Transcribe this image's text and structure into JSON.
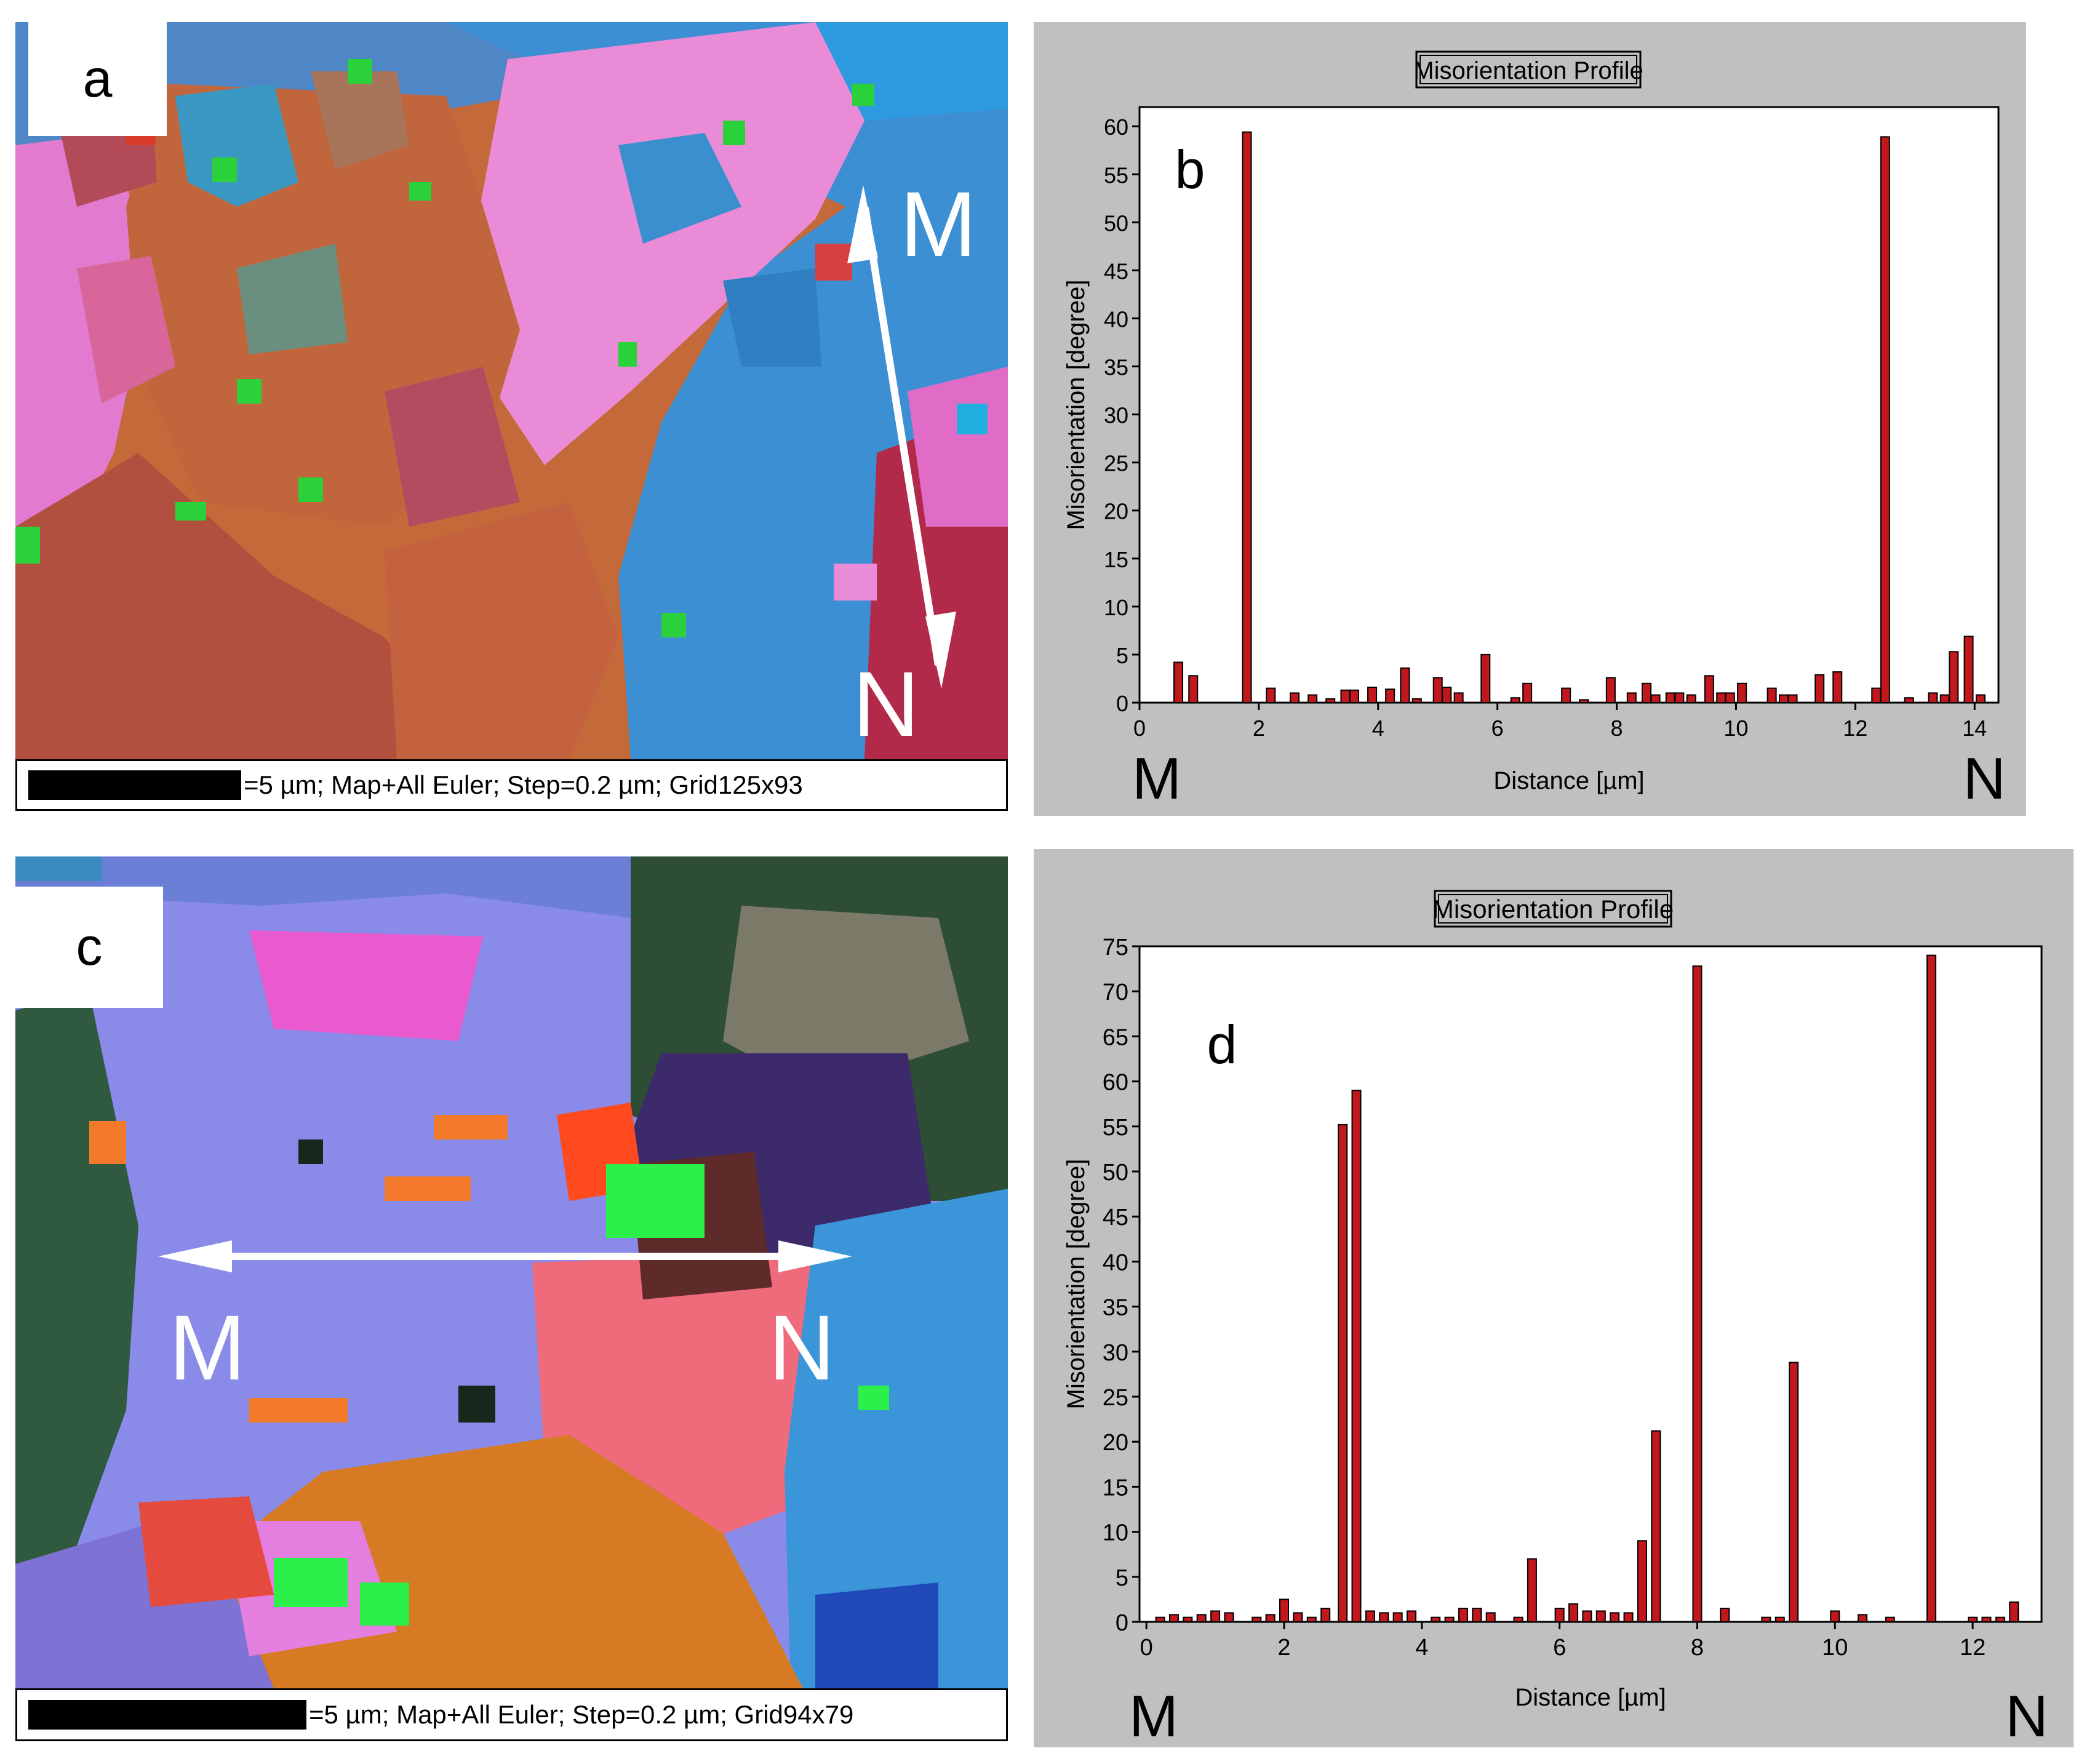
{
  "panels": {
    "a": {
      "letter": "a",
      "scale_text": "=5 µm; Map+All Euler; Step=0.2 µm; Grid125x93",
      "label_start": "M",
      "label_end": "N"
    },
    "c": {
      "letter": "c",
      "scale_text": "=5 µm; Map+All Euler; Step=0.2 µm; Grid94x79",
      "label_start": "M",
      "label_end": "N"
    }
  },
  "chart_data": [
    {
      "panel_letter": "b",
      "type": "bar",
      "title": "Misorientation Profile",
      "xlabel": "Distance [µm]",
      "ylabel": "Misorientation [degree]",
      "xlim": [
        0,
        14.4
      ],
      "ylim": [
        0,
        62
      ],
      "xticks": [
        0,
        2,
        4,
        6,
        8,
        10,
        12,
        14
      ],
      "yticks": [
        0,
        5,
        10,
        15,
        20,
        25,
        30,
        35,
        40,
        45,
        50,
        55,
        60
      ],
      "start_label": "M",
      "end_label": "N",
      "grid": false,
      "bar_color": "#c0181c",
      "x": [
        0.65,
        0.9,
        1.8,
        2.2,
        2.6,
        2.9,
        3.2,
        3.45,
        3.6,
        3.9,
        4.2,
        4.45,
        4.65,
        5.0,
        5.15,
        5.35,
        5.8,
        6.3,
        6.5,
        7.15,
        7.45,
        7.9,
        8.25,
        8.5,
        8.65,
        8.9,
        9.05,
        9.25,
        9.55,
        9.75,
        9.9,
        10.1,
        10.6,
        10.8,
        10.95,
        11.4,
        11.7,
        12.35,
        12.5,
        12.9,
        13.3,
        13.5,
        13.65,
        13.9,
        14.1
      ],
      "values": [
        4.2,
        2.8,
        59.4,
        1.5,
        1.0,
        0.8,
        0.4,
        1.3,
        1.3,
        1.6,
        1.4,
        3.6,
        0.4,
        2.6,
        1.6,
        1.0,
        5.0,
        0.5,
        2.0,
        1.5,
        0.3,
        2.6,
        1.0,
        2.0,
        0.8,
        1.0,
        1.0,
        0.8,
        2.8,
        1.0,
        1.0,
        2.0,
        1.5,
        0.8,
        0.8,
        2.9,
        3.2,
        1.5,
        58.9,
        0.5,
        1.0,
        0.8,
        5.3,
        6.9,
        0.8
      ]
    },
    {
      "panel_letter": "d",
      "type": "bar",
      "title": "Misorientation Profile",
      "xlabel": "Distance [µm]",
      "ylabel": "Misorientation [degree]",
      "xlim": [
        -0.1,
        13.0
      ],
      "ylim": [
        0,
        75
      ],
      "xticks": [
        0,
        2,
        4,
        6,
        8,
        10,
        12
      ],
      "yticks": [
        0,
        5,
        10,
        15,
        20,
        25,
        30,
        35,
        40,
        45,
        50,
        55,
        60,
        65,
        70,
        75
      ],
      "start_label": "M",
      "end_label": "N",
      "grid": false,
      "bar_color": "#c0181c",
      "x": [
        0.2,
        0.4,
        0.6,
        0.8,
        1.0,
        1.2,
        1.6,
        1.8,
        2.0,
        2.2,
        2.4,
        2.6,
        2.85,
        3.05,
        3.25,
        3.45,
        3.65,
        3.85,
        4.2,
        4.4,
        4.6,
        4.8,
        5.0,
        5.4,
        5.6,
        6.0,
        6.2,
        6.4,
        6.6,
        6.8,
        7.0,
        7.2,
        7.4,
        8.0,
        8.4,
        9.0,
        9.2,
        9.4,
        10.0,
        10.4,
        10.8,
        11.4,
        12.0,
        12.2,
        12.4,
        12.6
      ],
      "values": [
        0.5,
        0.8,
        0.5,
        0.8,
        1.2,
        1.0,
        0.5,
        0.8,
        2.5,
        1.0,
        0.5,
        1.5,
        55.2,
        59.0,
        1.2,
        1.0,
        1.0,
        1.2,
        0.5,
        0.5,
        1.5,
        1.5,
        1.0,
        0.5,
        7.0,
        1.5,
        2.0,
        1.2,
        1.2,
        1.0,
        1.0,
        9.0,
        21.2,
        72.8,
        1.5,
        0.5,
        0.5,
        28.8,
        1.2,
        0.8,
        0.5,
        74.0,
        0.5,
        0.5,
        0.5,
        2.2
      ]
    }
  ]
}
